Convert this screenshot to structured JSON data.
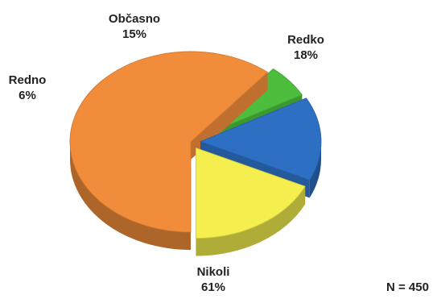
{
  "chart_data": {
    "type": "pie",
    "style": "3d-exploded",
    "title": "",
    "slices": [
      {
        "label": "Nikoli",
        "value": 61,
        "value_label": "61%",
        "color": "#f08c3a"
      },
      {
        "label": "Redno",
        "value": 6,
        "value_label": "6%",
        "color": "#4cbd3c"
      },
      {
        "label": "Občasno",
        "value": 15,
        "value_label": "15%",
        "color": "#2d6fc2"
      },
      {
        "label": "Redko",
        "value": 18,
        "value_label": "18%",
        "color": "#f4ef4e"
      }
    ],
    "annotation": "N = 450"
  }
}
